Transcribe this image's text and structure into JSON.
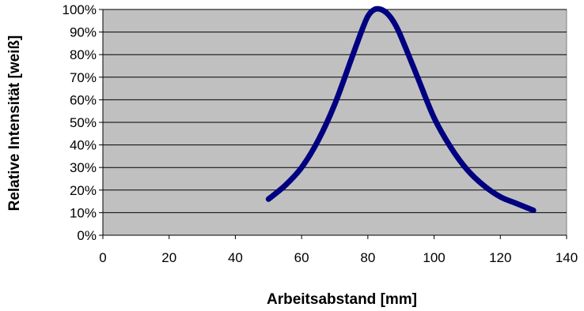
{
  "chart_data": {
    "type": "line",
    "xlabel": "Arbeitsabstand [mm]",
    "ylabel": "Relative Intensität [weiß]",
    "xlim": [
      0,
      140
    ],
    "ylim": [
      0,
      100
    ],
    "x_ticks": [
      0,
      20,
      40,
      60,
      80,
      100,
      120,
      140
    ],
    "x_tick_labels": [
      "0",
      "20",
      "40",
      "60",
      "80",
      "100",
      "120",
      "140"
    ],
    "y_ticks": [
      0,
      10,
      20,
      30,
      40,
      50,
      60,
      70,
      80,
      90,
      100
    ],
    "y_tick_labels": [
      "0%",
      "10%",
      "20%",
      "30%",
      "40%",
      "50%",
      "60%",
      "70%",
      "80%",
      "90%",
      "100%"
    ],
    "grid": "horizontal",
    "legend": "none",
    "series": [
      {
        "x": [
          50,
          55,
          60,
          65,
          70,
          75,
          78,
          80,
          82,
          84,
          86,
          88,
          90,
          95,
          100,
          105,
          110,
          115,
          120,
          125,
          130
        ],
        "y": [
          16,
          22,
          30,
          42,
          58,
          78,
          90,
          97,
          100,
          100,
          98,
          94,
          88,
          70,
          52,
          39,
          29,
          22,
          17,
          14,
          11
        ]
      }
    ],
    "colors": {
      "plot_background": "#c0c0c0",
      "line": "#000080",
      "grid": "#000000"
    }
  }
}
